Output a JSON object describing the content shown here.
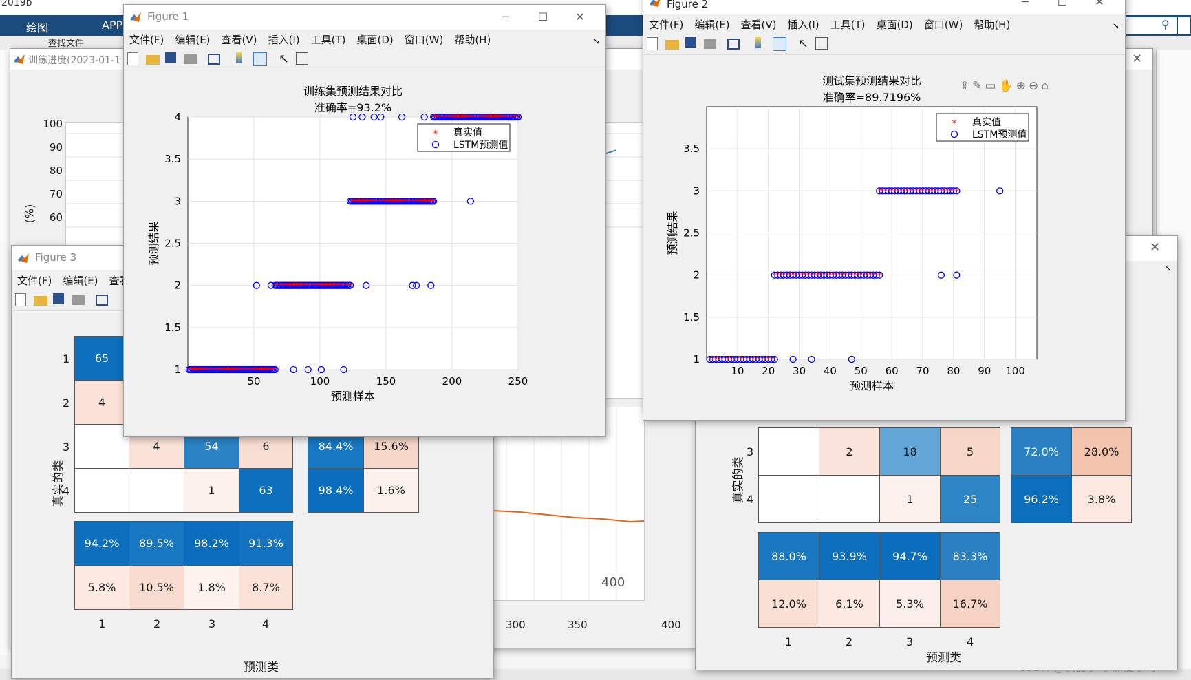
{
  "app": {
    "version_label": "2019b",
    "ribbon_tabs": [
      "绘图",
      "APP"
    ],
    "find_files": "查找文件",
    "csdn_watermark": "CSDN @机器学习-深度学习"
  },
  "training_progress_window": {
    "title": "训练进度(2023-01-1",
    "y_axis_label": "(%)",
    "y_ticks": [
      "100",
      "90",
      "80",
      "70",
      "60"
    ],
    "x_ticks_major": [
      "300",
      "400"
    ],
    "x_ticks_minor": [
      "300",
      "350",
      "400"
    ]
  },
  "figure1": {
    "title": "Figure 1",
    "menu": [
      "文件(F)",
      "编辑(E)",
      "查看(V)",
      "插入(I)",
      "工具(T)",
      "桌面(D)",
      "窗口(W)",
      "帮助(H)"
    ]
  },
  "figure2": {
    "title": "Figure 2",
    "menu": [
      "文件(F)",
      "编辑(E)",
      "查看(V)",
      "插入(I)",
      "工具(T)",
      "桌面(D)",
      "窗口(W)",
      "帮助(H)"
    ]
  },
  "figure3": {
    "title": "Figure 3",
    "menu": [
      "文件(F)",
      "编辑(E)",
      "查看"
    ],
    "confusion": {
      "ylabel": "真实的类",
      "xlabel": "预测类",
      "row_labels": [
        "1",
        "2",
        "3",
        "4"
      ],
      "col_labels": [
        "1",
        "2",
        "3",
        "4"
      ],
      "matrix": [
        [
          "65",
          "",
          "",
          ""
        ],
        [
          "4",
          "",
          "",
          ""
        ],
        [
          "",
          "4",
          "54",
          "6"
        ],
        [
          "",
          "",
          "1",
          "63"
        ]
      ],
      "row_summary": [
        [
          "84.4%",
          "15.6%"
        ],
        [
          "98.4%",
          "1.6%"
        ]
      ],
      "col_summary": [
        [
          "94.2%",
          "89.5%",
          "98.2%",
          "91.3%"
        ],
        [
          "5.8%",
          "10.5%",
          "1.8%",
          "8.7%"
        ]
      ]
    }
  },
  "figure4_partial": {
    "confusion": {
      "ylabel": "真实的类",
      "xlabel": "预测类",
      "row_labels": [
        "3",
        "4"
      ],
      "col_labels": [
        "1",
        "2",
        "3",
        "4"
      ],
      "matrix": [
        [
          "",
          "2",
          "18",
          "5"
        ],
        [
          "",
          "",
          "1",
          "25"
        ]
      ],
      "row_summary": [
        [
          "72.0%",
          "28.0%"
        ],
        [
          "96.2%",
          "3.8%"
        ]
      ],
      "col_summary": [
        [
          "88.0%",
          "93.9%",
          "94.7%",
          "83.3%"
        ],
        [
          "12.0%",
          "6.1%",
          "5.3%",
          "16.7%"
        ]
      ]
    }
  },
  "chart_data": [
    {
      "type": "scatter",
      "title": "训练集预测结果对比",
      "subtitle": "准确率=93.2%",
      "xlabel": "预测样本",
      "ylabel": "预测结果",
      "xlim": [
        0,
        250
      ],
      "ylim": [
        1,
        4
      ],
      "xticks": [
        50,
        100,
        150,
        200,
        250
      ],
      "yticks": [
        1,
        1.5,
        2,
        2.5,
        3,
        3.5,
        4
      ],
      "grid": true,
      "legend_position": "top-right",
      "series": [
        {
          "name": "真实值",
          "marker": "*",
          "color": "#ff0000",
          "segments": [
            {
              "x_from": 1,
              "x_to": 66,
              "y": 1
            },
            {
              "x_from": 66,
              "x_to": 123,
              "y": 2
            },
            {
              "x_from": 123,
              "x_to": 186,
              "y": 3
            },
            {
              "x_from": 186,
              "x_to": 250,
              "y": 4
            }
          ]
        },
        {
          "name": "LSTM预测值",
          "marker": "o",
          "color": "#0000ff",
          "segments": [
            {
              "x_from": 1,
              "x_to": 66,
              "y": 1
            },
            {
              "x_from": 66,
              "x_to": 123,
              "y": 2
            },
            {
              "x_from": 123,
              "x_to": 186,
              "y": 3
            },
            {
              "x_from": 186,
              "x_to": 250,
              "y": 4
            }
          ],
          "outliers": [
            [
              80,
              1
            ],
            [
              91,
              1
            ],
            [
              101,
              1
            ],
            [
              118,
              1
            ],
            [
              52,
              2
            ],
            [
              63,
              2
            ],
            [
              135,
              2
            ],
            [
              170,
              2
            ],
            [
              173,
              2
            ],
            [
              184,
              2
            ],
            [
              214,
              3
            ],
            [
              125,
              4
            ],
            [
              132,
              4
            ],
            [
              141,
              4
            ],
            [
              146,
              4
            ],
            [
              162,
              4
            ],
            [
              179,
              4
            ]
          ]
        }
      ]
    },
    {
      "type": "scatter",
      "title": "测试集预测结果对比",
      "subtitle": "准确率=89.7196%",
      "xlabel": "预测样本",
      "ylabel": "预测结果",
      "xlim": [
        0,
        107
      ],
      "ylim": [
        1,
        4
      ],
      "xticks": [
        10,
        20,
        30,
        40,
        50,
        60,
        70,
        80,
        90,
        100
      ],
      "yticks": [
        1,
        1.5,
        2,
        2.5,
        3,
        3.5
      ],
      "grid": true,
      "legend_position": "top-right",
      "series": [
        {
          "name": "真实值",
          "marker": "*",
          "color": "#ff0000",
          "segments": [
            {
              "x_from": 1,
              "x_to": 22,
              "y": 1
            },
            {
              "x_from": 22,
              "x_to": 56,
              "y": 2
            },
            {
              "x_from": 56,
              "x_to": 81,
              "y": 3
            }
          ]
        },
        {
          "name": "LSTM预测值",
          "marker": "o",
          "color": "#0000ff",
          "segments": [
            {
              "x_from": 1,
              "x_to": 22,
              "y": 1
            },
            {
              "x_from": 22,
              "x_to": 56,
              "y": 2
            },
            {
              "x_from": 56,
              "x_to": 81,
              "y": 3
            }
          ],
          "outliers": [
            [
              28,
              1
            ],
            [
              34,
              1
            ],
            [
              47,
              1
            ],
            [
              76,
              2
            ],
            [
              81,
              2
            ],
            [
              95,
              3
            ]
          ]
        }
      ]
    }
  ]
}
